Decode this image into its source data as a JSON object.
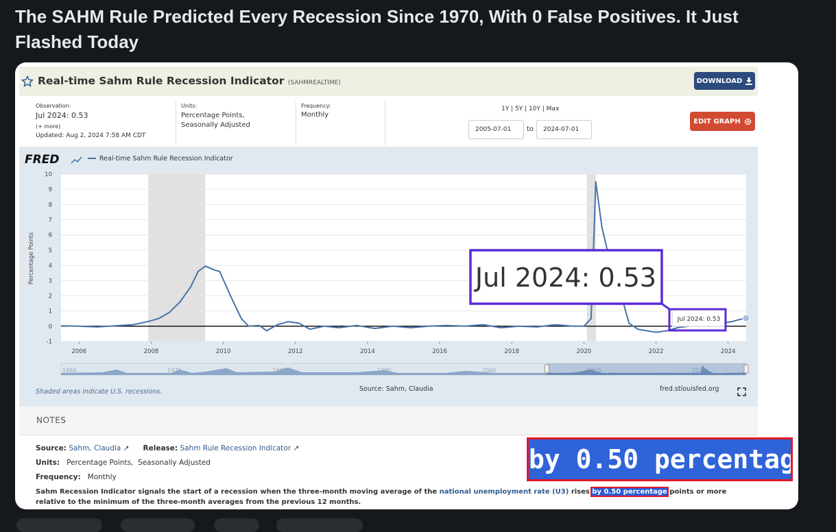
{
  "post": {
    "title": "The SAHM Rule Predicted Every Recession Since 1970, With 0 False Positives. It Just Flashed Today"
  },
  "header": {
    "title": "Real-time Sahm Rule Recession Indicator",
    "series_id": "(SAHMREALTIME)",
    "download": "DOWNLOAD"
  },
  "info": {
    "observation_label": "Observation:",
    "observation": "Jul 2024: 0.53",
    "more": "(+ more)",
    "updated_label": "Updated:",
    "updated": "Aug 2, 2024 7:58 AM CDT",
    "units_label": "Units:",
    "units": [
      "Percentage Points,",
      "Seasonally Adjusted"
    ],
    "frequency_label": "Frequency:",
    "frequency": "Monthly",
    "ranges": "1Y | 5Y | 10Y | Max",
    "start_date": "2005-07-01",
    "to": "to",
    "end_date": "2024-07-01",
    "edit": "EDIT GRAPH"
  },
  "chart_data": {
    "type": "line",
    "logo": "FRED",
    "y_label": "Percentage Points",
    "x": [
      2005.5,
      2006.0,
      2006.5,
      2007.0,
      2007.5,
      2007.9,
      2008.2,
      2008.5,
      2008.8,
      2009.1,
      2009.3,
      2009.5,
      2009.75,
      2009.9,
      2010.2,
      2010.5,
      2010.7,
      2011.0,
      2011.2,
      2011.5,
      2011.8,
      2012.1,
      2012.4,
      2012.8,
      2013.2,
      2013.7,
      2014.2,
      2014.7,
      2015.2,
      2015.7,
      2016.2,
      2016.7,
      2017.2,
      2017.7,
      2018.2,
      2018.7,
      2019.2,
      2019.7,
      2020.0,
      2020.2,
      2020.33,
      2020.5,
      2020.75,
      2020.9,
      2021.1,
      2021.25,
      2021.5,
      2021.75,
      2022.0,
      2022.3,
      2022.6,
      2022.9,
      2023.2,
      2023.5,
      2023.8,
      2024.1,
      2024.3,
      2024.5
    ],
    "series": [
      {
        "name": "Real-time Sahm Rule Recession Indicator",
        "color": "#4572a7",
        "values": [
          0.03,
          0.0,
          -0.05,
          0.03,
          0.1,
          0.3,
          0.5,
          0.9,
          1.6,
          2.6,
          3.6,
          3.95,
          3.7,
          3.6,
          2.0,
          0.5,
          0.0,
          0.05,
          -0.3,
          0.1,
          0.3,
          0.2,
          -0.2,
          0.0,
          -0.1,
          0.05,
          -0.15,
          0.0,
          -0.1,
          0.0,
          0.05,
          0.0,
          0.1,
          -0.1,
          0.0,
          -0.05,
          0.1,
          0.0,
          0.0,
          0.5,
          9.5,
          6.5,
          4.0,
          2.5,
          1.5,
          0.2,
          -0.2,
          -0.3,
          -0.4,
          -0.3,
          -0.1,
          0.0,
          0.1,
          0.0,
          0.2,
          0.3,
          0.43,
          0.53
        ]
      }
    ],
    "xlim": [
      2005.5,
      2024.5
    ],
    "xticks": [
      2006,
      2008,
      2010,
      2012,
      2014,
      2016,
      2018,
      2020,
      2022,
      2024
    ],
    "ylim": [
      -1,
      10
    ],
    "yticks": [
      -1,
      0,
      1,
      2,
      3,
      4,
      5,
      6,
      7,
      8,
      9,
      10
    ],
    "grid": true,
    "recessions": [
      [
        2007.917,
        2009.5
      ],
      [
        2020.083,
        2020.333
      ]
    ],
    "navigator_xlim": [
      1959.2,
      2024.5
    ],
    "navigator_xticks": [
      1960,
      1970,
      1980,
      1990,
      2000,
      2010,
      2020
    ]
  },
  "footer": {
    "recession_note": "Shaded areas indicate U.S. recessions.",
    "source": "Source: Sahm, Claudia",
    "site": "fred.stlouisfed.org"
  },
  "notes": {
    "heading": "NOTES",
    "source_label": "Source:",
    "source": "Sahm, Claudia",
    "release_label": "Release:",
    "release": "Sahm Rule Recession Indicator",
    "units_label": "Units:",
    "units": "Percentage Points,  Seasonally Adjusted",
    "frequency_label": "Frequency:",
    "frequency": "Monthly",
    "description": {
      "before": "Sahm Recession Indicator signals the start of a recession when the three-month moving average of the",
      "link": "national unemployment rate (U3)",
      "middle": "rises",
      "highlight": "by 0.50 percentage",
      "after": "points or more relative to the minimum of the three-month averages from the previous 12 months."
    }
  }
}
